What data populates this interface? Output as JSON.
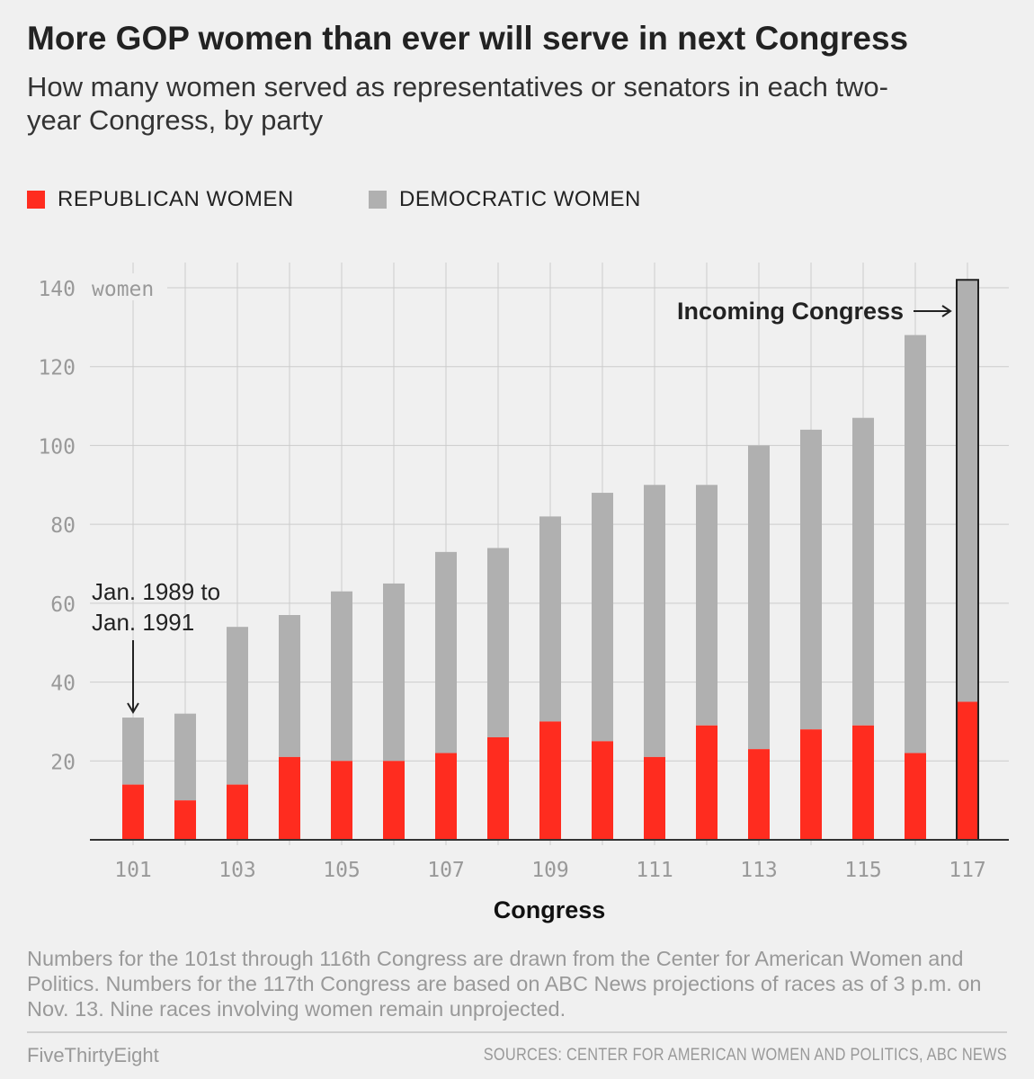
{
  "title": "More GOP women than ever will serve in next Congress",
  "subtitle": "How many women served as representatives or senators in each two-year Congress, by party",
  "legend": {
    "republican": "REPUBLICAN WOMEN",
    "democratic": "DEMOCRATIC WOMEN"
  },
  "colors": {
    "republican": "#ff2c1f",
    "democratic": "#b0b0b0",
    "background": "#f0f0f0"
  },
  "chart_data": {
    "type": "bar",
    "stacked": true,
    "categories": [
      "101",
      "102",
      "103",
      "104",
      "105",
      "106",
      "107",
      "108",
      "109",
      "110",
      "111",
      "112",
      "113",
      "114",
      "115",
      "116",
      "117"
    ],
    "series": [
      {
        "name": "REPUBLICAN WOMEN",
        "values": [
          14,
          10,
          14,
          21,
          20,
          20,
          22,
          26,
          30,
          25,
          21,
          29,
          23,
          28,
          29,
          22,
          35
        ]
      },
      {
        "name": "DEMOCRATIC WOMEN",
        "values": [
          17,
          22,
          40,
          36,
          43,
          45,
          51,
          48,
          52,
          63,
          69,
          61,
          77,
          76,
          78,
          106,
          107
        ]
      }
    ],
    "x_tick_labels": [
      "101",
      "103",
      "105",
      "107",
      "109",
      "111",
      "113",
      "115",
      "117"
    ],
    "y_ticks": [
      20,
      40,
      60,
      80,
      100,
      120,
      140
    ],
    "y_unit_label": "women",
    "xlabel": "Congress",
    "ylim": [
      0,
      140
    ],
    "grid": true,
    "annotations": {
      "first": [
        "Jan. 1989 to",
        "Jan. 1991"
      ],
      "incoming": "Incoming Congress"
    }
  },
  "footer": {
    "note": "Numbers for the 101st through 116th Congress are drawn from the Center for American Women and Politics. Numbers for the 117th Congress are based on ABC News projections of races as of 3 p.m. on Nov. 13. Nine races involving women remain unprojected.",
    "brand": "FiveThirtyEight",
    "sources": "SOURCES: CENTER FOR AMERICAN WOMEN AND POLITICS, ABC NEWS"
  }
}
